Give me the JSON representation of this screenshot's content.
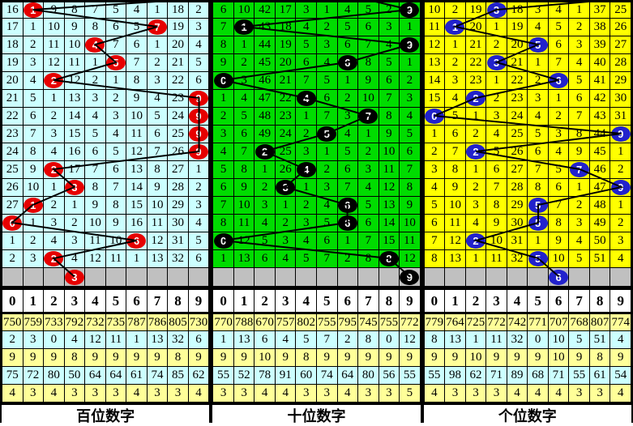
{
  "chart_data": {
    "type": "table",
    "colors": {
      "prediction_row_bg": "#C0C0C0",
      "stats_row_yellow": "#FFFF99",
      "stats_row_cyan": "#CCFFFF",
      "trend_line": "#000000",
      "circle_text": "#FFFFFF"
    },
    "panels": [
      {
        "id": "hundreds",
        "title": "百位数字",
        "colors": {
          "cell_bg": "#CCFFFF",
          "circle_bg": "#E60000"
        },
        "digits_header": [
          "0",
          "1",
          "2",
          "3",
          "4",
          "5",
          "6",
          "7",
          "8",
          "9"
        ],
        "rows": [
          [
            "16",
            "1",
            "9",
            "8",
            "7",
            "5",
            "4",
            "1",
            "18",
            "2"
          ],
          [
            "17",
            "1",
            "10",
            "9",
            "8",
            "6",
            "5",
            "7",
            "19",
            "3"
          ],
          [
            "18",
            "2",
            "11",
            "10",
            "4",
            "7",
            "6",
            "1",
            "20",
            "4"
          ],
          [
            "19",
            "3",
            "12",
            "11",
            "1",
            "5",
            "7",
            "2",
            "21",
            "5"
          ],
          [
            "20",
            "4",
            "2",
            "12",
            "2",
            "1",
            "8",
            "3",
            "22",
            "6"
          ],
          [
            "21",
            "5",
            "1",
            "13",
            "3",
            "2",
            "9",
            "4",
            "23",
            "9"
          ],
          [
            "22",
            "6",
            "2",
            "14",
            "4",
            "3",
            "10",
            "5",
            "24",
            "9"
          ],
          [
            "23",
            "7",
            "3",
            "15",
            "5",
            "4",
            "11",
            "6",
            "25",
            "9"
          ],
          [
            "24",
            "8",
            "4",
            "16",
            "6",
            "5",
            "12",
            "7",
            "26",
            "9"
          ],
          [
            "25",
            "9",
            "2",
            "17",
            "7",
            "6",
            "13",
            "8",
            "27",
            "1"
          ],
          [
            "26",
            "10",
            "1",
            "3",
            "8",
            "7",
            "14",
            "9",
            "28",
            "2"
          ],
          [
            "27",
            "1",
            "2",
            "1",
            "9",
            "8",
            "15",
            "10",
            "29",
            "3"
          ],
          [
            "0",
            "1",
            "3",
            "2",
            "10",
            "9",
            "16",
            "11",
            "30",
            "4"
          ],
          [
            "1",
            "2",
            "4",
            "3",
            "11",
            "10",
            "6",
            "12",
            "31",
            "5"
          ],
          [
            "2",
            "3",
            "2",
            "4",
            "12",
            "11",
            "1",
            "13",
            "32",
            "6"
          ]
        ],
        "winner_col_by_row": [
          1,
          7,
          4,
          5,
          2,
          9,
          9,
          9,
          9,
          2,
          3,
          1,
          0,
          6,
          2
        ],
        "prediction": {
          "col": 3,
          "value": "3"
        },
        "entry_x_frac": 0.98,
        "stats_rows": [
          [
            "750",
            "759",
            "733",
            "792",
            "732",
            "735",
            "787",
            "786",
            "805",
            "730"
          ],
          [
            "2",
            "3",
            "0",
            "4",
            "12",
            "11",
            "1",
            "13",
            "32",
            "6"
          ],
          [
            "9",
            "9",
            "9",
            "8",
            "9",
            "9",
            "9",
            "9",
            "8",
            "9"
          ],
          [
            "75",
            "72",
            "80",
            "50",
            "64",
            "64",
            "61",
            "74",
            "85",
            "62"
          ],
          [
            "4",
            "3",
            "4",
            "3",
            "3",
            "3",
            "4",
            "3",
            "3",
            "4"
          ]
        ]
      },
      {
        "id": "tens",
        "title": "十位数字",
        "colors": {
          "cell_bg": "#00DC00",
          "circle_bg": "#000000"
        },
        "digits_header": [
          "0",
          "1",
          "2",
          "3",
          "4",
          "5",
          "6",
          "7",
          "8",
          "9"
        ],
        "rows": [
          [
            "6",
            "10",
            "42",
            "17",
            "3",
            "1",
            "4",
            "5",
            "2",
            "9"
          ],
          [
            "7",
            "1",
            "43",
            "18",
            "4",
            "2",
            "5",
            "6",
            "3",
            "1"
          ],
          [
            "8",
            "1",
            "44",
            "19",
            "5",
            "3",
            "6",
            "7",
            "4",
            "9"
          ],
          [
            "9",
            "2",
            "45",
            "20",
            "6",
            "4",
            "6",
            "8",
            "5",
            "1"
          ],
          [
            "0",
            "3",
            "46",
            "21",
            "7",
            "5",
            "1",
            "9",
            "6",
            "2"
          ],
          [
            "1",
            "4",
            "47",
            "22",
            "4",
            "6",
            "2",
            "10",
            "7",
            "3"
          ],
          [
            "2",
            "5",
            "48",
            "23",
            "1",
            "7",
            "3",
            "7",
            "8",
            "4"
          ],
          [
            "3",
            "6",
            "49",
            "24",
            "2",
            "5",
            "4",
            "1",
            "9",
            "5"
          ],
          [
            "4",
            "7",
            "2",
            "25",
            "3",
            "1",
            "5",
            "2",
            "10",
            "6"
          ],
          [
            "5",
            "8",
            "1",
            "26",
            "4",
            "2",
            "6",
            "3",
            "11",
            "7"
          ],
          [
            "6",
            "9",
            "2",
            "3",
            "1",
            "3",
            "7",
            "4",
            "12",
            "8"
          ],
          [
            "7",
            "10",
            "3",
            "1",
            "2",
            "4",
            "6",
            "5",
            "13",
            "9"
          ],
          [
            "8",
            "11",
            "4",
            "2",
            "3",
            "5",
            "6",
            "6",
            "14",
            "10"
          ],
          [
            "0",
            "12",
            "5",
            "3",
            "4",
            "6",
            "1",
            "7",
            "15",
            "11"
          ],
          [
            "1",
            "13",
            "6",
            "4",
            "5",
            "7",
            "2",
            "8",
            "8",
            "12"
          ]
        ],
        "winner_col_by_row": [
          9,
          1,
          9,
          6,
          0,
          4,
          7,
          5,
          2,
          4,
          3,
          6,
          6,
          0,
          8
        ],
        "prediction": {
          "col": 9,
          "value": "9"
        },
        "entry_x_frac": 0.72,
        "stats_rows": [
          [
            "770",
            "788",
            "670",
            "757",
            "802",
            "755",
            "795",
            "745",
            "755",
            "772"
          ],
          [
            "1",
            "13",
            "6",
            "4",
            "5",
            "7",
            "2",
            "8",
            "0",
            "12"
          ],
          [
            "9",
            "9",
            "10",
            "9",
            "8",
            "9",
            "9",
            "9",
            "9",
            "9"
          ],
          [
            "55",
            "52",
            "78",
            "91",
            "60",
            "74",
            "64",
            "80",
            "56",
            "55"
          ],
          [
            "3",
            "3",
            "4",
            "4",
            "3",
            "3",
            "4",
            "3",
            "3",
            "5"
          ]
        ]
      },
      {
        "id": "units",
        "title": "个位数字",
        "colors": {
          "cell_bg": "#FFFF00",
          "circle_bg": "#2222CC"
        },
        "digits_header": [
          "0",
          "1",
          "2",
          "3",
          "4",
          "5",
          "6",
          "7",
          "8",
          "9"
        ],
        "rows": [
          [
            "10",
            "2",
            "19",
            "3",
            "18",
            "3",
            "4",
            "1",
            "37",
            "25"
          ],
          [
            "11",
            "1",
            "20",
            "1",
            "19",
            "4",
            "5",
            "2",
            "38",
            "26"
          ],
          [
            "12",
            "1",
            "21",
            "2",
            "20",
            "5",
            "6",
            "3",
            "39",
            "27"
          ],
          [
            "13",
            "2",
            "22",
            "3",
            "21",
            "1",
            "7",
            "4",
            "40",
            "28"
          ],
          [
            "14",
            "3",
            "23",
            "1",
            "22",
            "2",
            "6",
            "5",
            "41",
            "29"
          ],
          [
            "15",
            "4",
            "2",
            "2",
            "23",
            "3",
            "1",
            "6",
            "42",
            "30"
          ],
          [
            "0",
            "5",
            "1",
            "3",
            "24",
            "4",
            "2",
            "7",
            "43",
            "31"
          ],
          [
            "1",
            "6",
            "2",
            "4",
            "25",
            "5",
            "3",
            "8",
            "44",
            "9"
          ],
          [
            "2",
            "7",
            "2",
            "5",
            "26",
            "6",
            "4",
            "9",
            "45",
            "1"
          ],
          [
            "3",
            "8",
            "1",
            "6",
            "27",
            "7",
            "5",
            "7",
            "46",
            "2"
          ],
          [
            "4",
            "9",
            "2",
            "7",
            "28",
            "8",
            "6",
            "1",
            "47",
            "9"
          ],
          [
            "5",
            "10",
            "3",
            "8",
            "29",
            "5",
            "7",
            "2",
            "48",
            "1"
          ],
          [
            "6",
            "11",
            "4",
            "9",
            "30",
            "5",
            "8",
            "3",
            "49",
            "2"
          ],
          [
            "7",
            "12",
            "2",
            "10",
            "31",
            "1",
            "9",
            "4",
            "50",
            "3"
          ],
          [
            "8",
            "13",
            "1",
            "11",
            "32",
            "5",
            "10",
            "5",
            "51",
            "4"
          ]
        ],
        "winner_col_by_row": [
          3,
          1,
          5,
          3,
          6,
          2,
          0,
          9,
          2,
          7,
          9,
          5,
          5,
          2,
          5
        ],
        "prediction": {
          "col": 6,
          "value": "6"
        },
        "entry_x_frac": 0.97,
        "stats_rows": [
          [
            "779",
            "764",
            "725",
            "772",
            "742",
            "771",
            "707",
            "768",
            "807",
            "774"
          ],
          [
            "8",
            "13",
            "1",
            "11",
            "32",
            "0",
            "10",
            "5",
            "51",
            "4"
          ],
          [
            "9",
            "9",
            "10",
            "9",
            "9",
            "9",
            "10",
            "9",
            "8",
            "9"
          ],
          [
            "55",
            "98",
            "62",
            "71",
            "89",
            "68",
            "71",
            "55",
            "61",
            "54"
          ],
          [
            "4",
            "3",
            "3",
            "3",
            "4",
            "4",
            "4",
            "3",
            "3",
            "4"
          ]
        ]
      }
    ]
  }
}
